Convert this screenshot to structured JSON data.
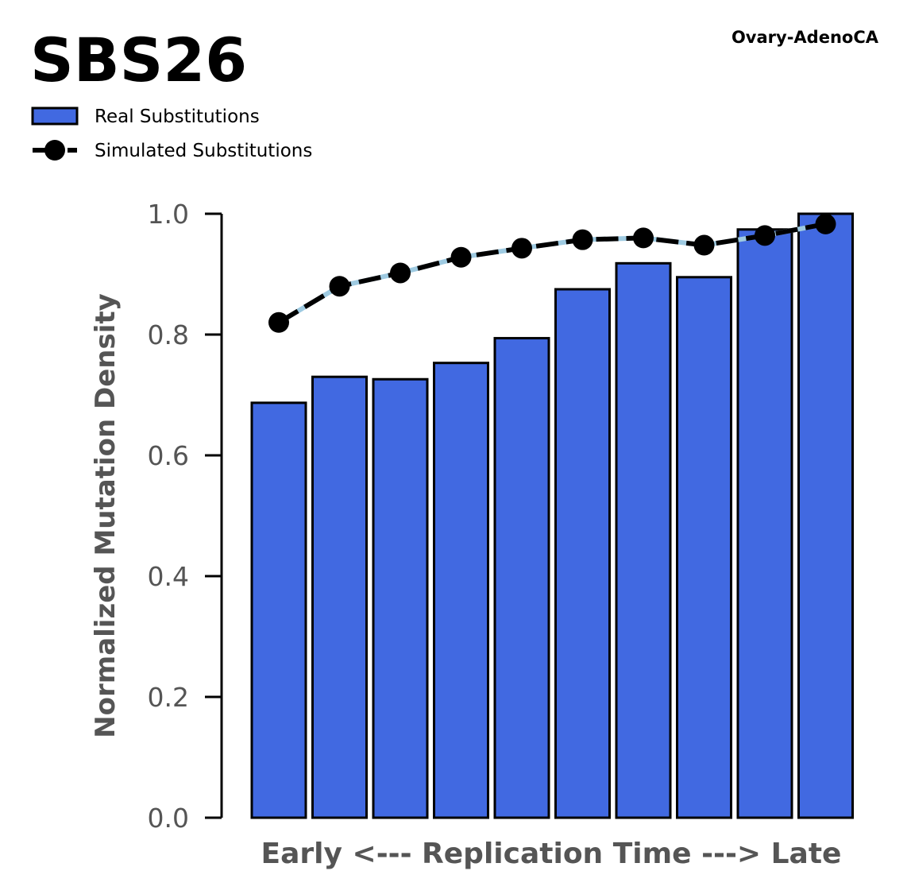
{
  "chart_data": {
    "type": "bar",
    "title": "SBS26",
    "subtitle": "Ovary-AdenoCA",
    "xlabel": "Early <--- Replication Time ---> Late",
    "ylabel": "Normalized Mutation Density",
    "ylim": [
      0,
      1.0
    ],
    "yticks": [
      "0.0",
      "0.2",
      "0.4",
      "0.6",
      "0.8",
      "1.0"
    ],
    "grid": false,
    "legend_position": "top-left",
    "series": [
      {
        "name": "Real Substitutions",
        "kind": "bar",
        "color": "#4169E1",
        "values": [
          0.687,
          0.73,
          0.726,
          0.753,
          0.794,
          0.875,
          0.918,
          0.895,
          0.974,
          1.0
        ]
      },
      {
        "name": "Simulated Substitutions",
        "kind": "line",
        "color": "#000000",
        "values": [
          0.82,
          0.88,
          0.902,
          0.928,
          0.943,
          0.957,
          0.96,
          0.948,
          0.964,
          0.983
        ]
      }
    ]
  }
}
